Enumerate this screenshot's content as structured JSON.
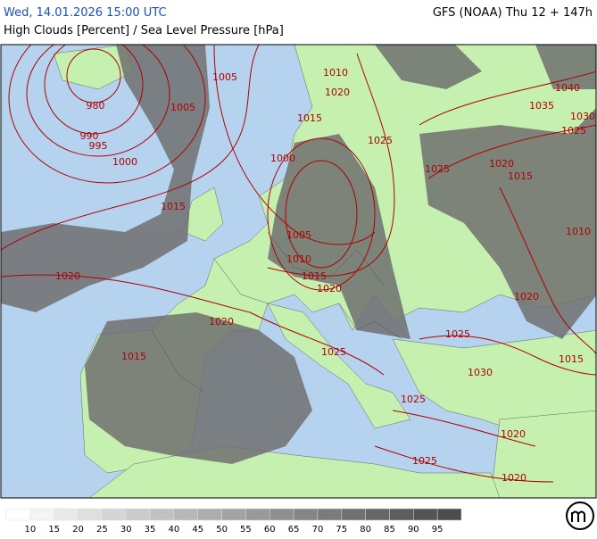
{
  "header": {
    "datetime": "Wed, 14.01.2026 15:00 UTC",
    "model": "GFS (NOAA) Thu 12 + 147h",
    "parameter": "High Clouds [Percent] / Sea Level Pressure [hPa]"
  },
  "isobar_labels": [
    "1005",
    "1010",
    "1020",
    "980",
    "1005",
    "1015",
    "990",
    "995",
    "1025",
    "1040",
    "1035",
    "1030",
    "1025",
    "1000",
    "1000",
    "1025",
    "1020",
    "1015",
    "1015",
    "1010",
    "1005",
    "1010",
    "1020",
    "1015",
    "1020",
    "1020",
    "1020",
    "1025",
    "1015",
    "1025",
    "1015",
    "1030",
    "1025",
    "1020",
    "1025",
    "1020"
  ],
  "legend": {
    "labels": [
      10,
      15,
      20,
      25,
      30,
      35,
      40,
      45,
      50,
      55,
      60,
      65,
      70,
      75,
      80,
      85,
      90,
      95
    ],
    "colors": [
      "#ffffff",
      "#f4f4f4",
      "#e9e9e9",
      "#dfdfdf",
      "#d5d5d5",
      "#cbcbcb",
      "#c1c1c1",
      "#b7b7b7",
      "#adadad",
      "#a3a3a3",
      "#999999",
      "#8f8f8f",
      "#858585",
      "#7b7b7b",
      "#717171",
      "#676767",
      "#5d5d5d",
      "#555555",
      "#4d4d4d"
    ]
  }
}
